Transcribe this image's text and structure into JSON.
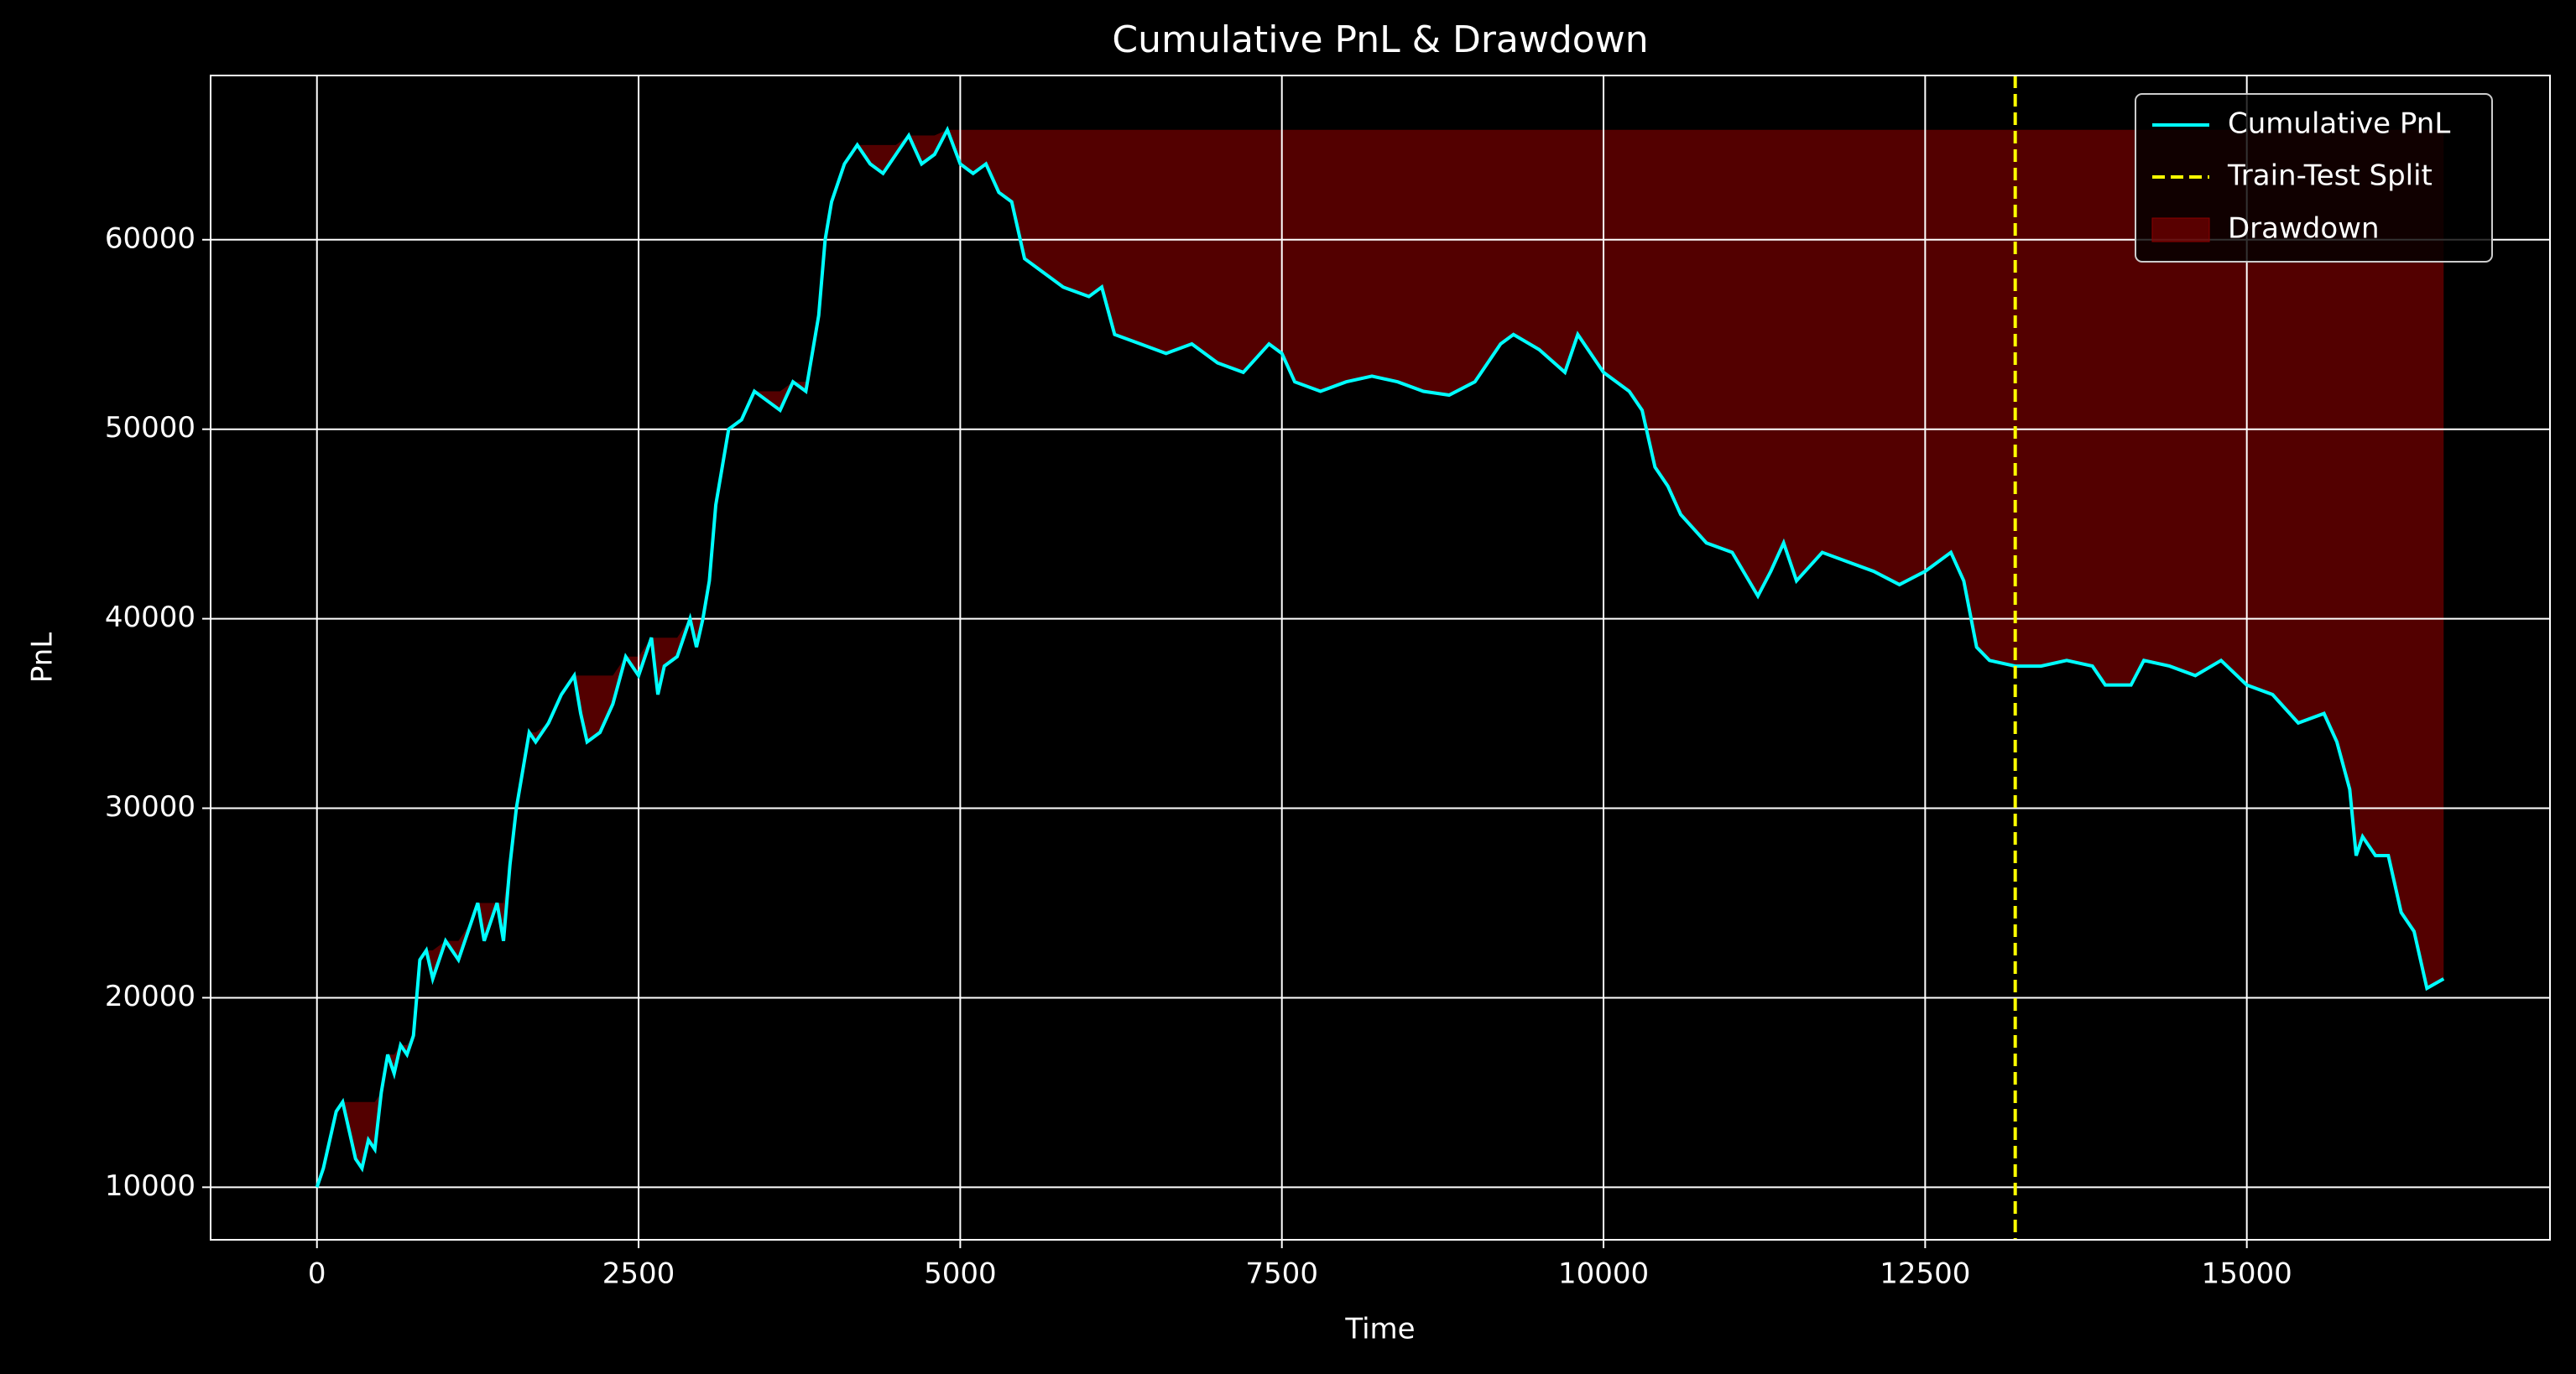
{
  "chart_data": {
    "type": "line",
    "title": "Cumulative PnL & Drawdown",
    "x_label": "Time",
    "y_label": "PnL",
    "x": [
      0,
      50,
      100,
      150,
      200,
      250,
      300,
      350,
      400,
      450,
      500,
      550,
      600,
      650,
      700,
      750,
      800,
      850,
      900,
      1000,
      1100,
      1200,
      1250,
      1300,
      1400,
      1450,
      1500,
      1550,
      1600,
      1650,
      1700,
      1800,
      1900,
      2000,
      2050,
      2100,
      2200,
      2300,
      2400,
      2500,
      2600,
      2650,
      2700,
      2800,
      2900,
      2950,
      3000,
      3050,
      3100,
      3150,
      3200,
      3300,
      3400,
      3500,
      3600,
      3700,
      3800,
      3900,
      3950,
      4000,
      4100,
      4200,
      4300,
      4400,
      4500,
      4600,
      4700,
      4800,
      4900,
      5000,
      5100,
      5200,
      5300,
      5400,
      5500,
      5600,
      5800,
      6000,
      6100,
      6200,
      6400,
      6600,
      6800,
      7000,
      7200,
      7400,
      7500,
      7600,
      7800,
      8000,
      8200,
      8400,
      8600,
      8800,
      9000,
      9200,
      9300,
      9500,
      9700,
      9800,
      9900,
      10000,
      10200,
      10300,
      10400,
      10500,
      10600,
      10800,
      11000,
      11200,
      11300,
      11400,
      11500,
      11700,
      11900,
      12100,
      12300,
      12500,
      12700,
      12800,
      12900,
      13000,
      13200,
      13400,
      13600,
      13800,
      13900,
      14100,
      14200,
      14400,
      14600,
      14800,
      15000,
      15200,
      15400,
      15600,
      15700,
      15800,
      15850,
      15900,
      16000,
      16100,
      16200,
      16300,
      16400,
      16530
    ],
    "series": [
      {
        "name": "Cumulative PnL",
        "color": "#00ffff",
        "values": [
          10000,
          11000,
          12500,
          14000,
          14500,
          13000,
          11500,
          11000,
          12500,
          12000,
          15000,
          17000,
          16000,
          17500,
          17000,
          18000,
          22000,
          22500,
          21000,
          23000,
          22000,
          24000,
          25000,
          23000,
          25000,
          23000,
          27000,
          30000,
          32000,
          34000,
          33500,
          34500,
          36000,
          37000,
          35000,
          33500,
          34000,
          35500,
          38000,
          37000,
          39000,
          36000,
          37500,
          38000,
          40000,
          38500,
          40000,
          42000,
          46000,
          48000,
          50000,
          50500,
          52000,
          51500,
          51000,
          52500,
          52000,
          56000,
          60000,
          62000,
          64000,
          65000,
          64000,
          63500,
          64500,
          65500,
          64000,
          64500,
          65800,
          64000,
          63500,
          64000,
          62500,
          62000,
          59000,
          58500,
          57500,
          57000,
          57500,
          55000,
          54500,
          54000,
          54500,
          53500,
          53000,
          54500,
          54000,
          52500,
          52000,
          52500,
          52800,
          52500,
          52000,
          51800,
          52500,
          54500,
          55000,
          54200,
          53000,
          55000,
          54000,
          53000,
          52000,
          51000,
          48000,
          47000,
          45500,
          44000,
          43500,
          41200,
          42500,
          44000,
          42000,
          43500,
          43000,
          42500,
          41800,
          42500,
          43500,
          42000,
          38500,
          37800,
          37500,
          37500,
          37800,
          37500,
          36500,
          36500,
          37800,
          37500,
          37000,
          37800,
          36500,
          36000,
          34500,
          35000,
          33500,
          31000,
          27500,
          28500,
          27500,
          27500,
          24500,
          23500,
          20500,
          21000
        ]
      }
    ],
    "split": {
      "name": "Train-Test Split",
      "x": 13200,
      "color": "#ffff00"
    },
    "drawdown": {
      "name": "Drawdown",
      "color": "#8b0000"
    },
    "xlim": [
      -826.5,
      17356.5
    ],
    "ylim": [
      7227,
      68666
    ],
    "xticks": [
      0,
      2500,
      5000,
      7500,
      10000,
      12500,
      15000
    ],
    "yticks": [
      10000,
      20000,
      30000,
      40000,
      50000,
      60000
    ],
    "grid": true,
    "legend": "upper right"
  }
}
